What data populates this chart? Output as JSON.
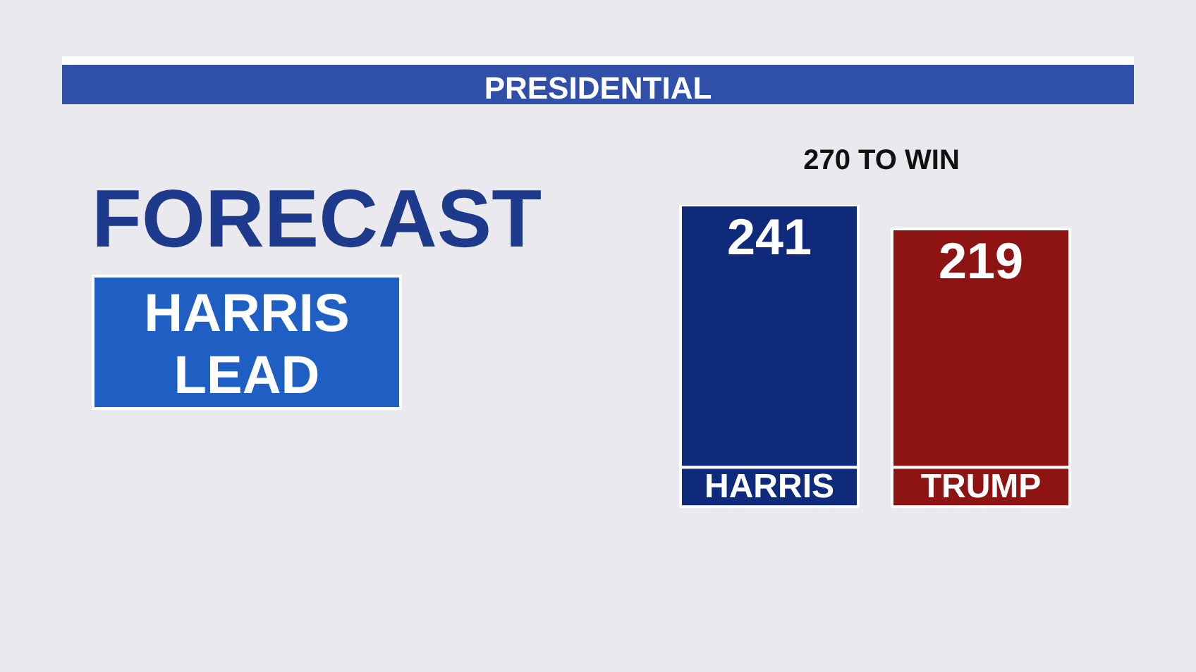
{
  "chart_data": {
    "type": "bar",
    "title": "PRESIDENTIAL",
    "categories": [
      "HARRIS",
      "TRUMP"
    ],
    "values": [
      241,
      219
    ],
    "colors": [
      "#0f2a7a",
      "#8e1414"
    ],
    "data_labels": true,
    "annotations": [
      "270 TO WIN",
      "FORECAST",
      "HARRIS LEAD"
    ]
  }
}
